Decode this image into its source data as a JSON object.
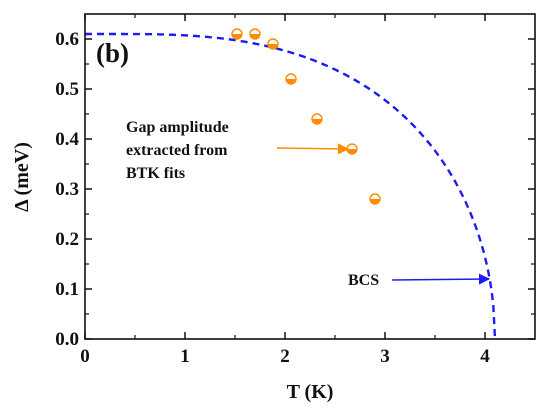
{
  "chart_data": {
    "type": "scatter",
    "panel_label": "(b)",
    "xlabel": "T (K)",
    "ylabel": "Δ (meV)",
    "xlim": [
      0,
      4.5
    ],
    "ylim": [
      0,
      0.65
    ],
    "x_ticks": [
      0,
      1,
      2,
      3,
      4
    ],
    "y_ticks": [
      0.0,
      0.1,
      0.2,
      0.3,
      0.4,
      0.5,
      0.6
    ],
    "y_tick_labels": [
      "0.0",
      "0.1",
      "0.2",
      "0.3",
      "0.4",
      "0.5",
      "0.6"
    ],
    "grid": false,
    "series": [
      {
        "marker": "half-filled circle",
        "color": "#ff8c00",
        "x": [
          1.52,
          1.7,
          1.88,
          2.06,
          2.32,
          2.67,
          2.9
        ],
        "y": [
          0.61,
          0.61,
          0.59,
          0.52,
          0.44,
          0.38,
          0.28
        ]
      },
      {
        "style": "dashed",
        "color": "#1c1cf0",
        "model": "BCS",
        "Delta0": 0.61,
        "Tc": 4.1
      }
    ],
    "annotations": [
      {
        "lines": [
          "Gap amplitude",
          "extracted  from",
          "BTK fits"
        ],
        "arrow_color": "#ff8c00",
        "arrow_to": {
          "x": 2.63,
          "y": 0.38
        }
      },
      {
        "lines": [
          "BCS"
        ],
        "arrow_color": "#1c1cf0",
        "arrow_to": {
          "x": 4.04,
          "y": 0.12
        }
      }
    ]
  }
}
